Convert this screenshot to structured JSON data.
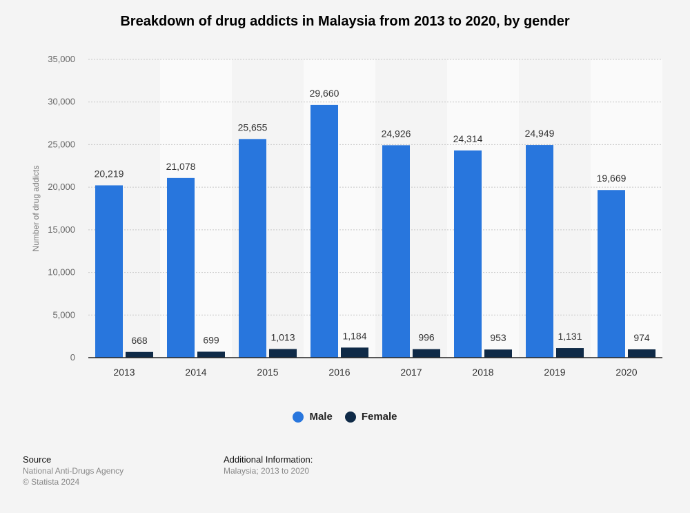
{
  "chart_data": {
    "type": "bar",
    "title": "Breakdown of drug addicts in Malaysia from 2013 to 2020, by gender",
    "xlabel": "",
    "ylabel": "Number of drug addicts",
    "ylim": [
      0,
      35000
    ],
    "yticks": [
      0,
      5000,
      10000,
      15000,
      20000,
      25000,
      30000,
      35000
    ],
    "ytick_labels": [
      "0",
      "5,000",
      "10,000",
      "15,000",
      "20,000",
      "25,000",
      "30,000",
      "35,000"
    ],
    "grid": true,
    "legend_position": "bottom-center",
    "categories": [
      "2013",
      "2014",
      "2015",
      "2016",
      "2017",
      "2018",
      "2019",
      "2020"
    ],
    "series": [
      {
        "name": "Male",
        "color": "#2876dd",
        "values": [
          20219,
          21078,
          25655,
          29660,
          24926,
          24314,
          24949,
          19669
        ],
        "labels": [
          "20,219",
          "21,078",
          "25,655",
          "29,660",
          "24,926",
          "24,314",
          "24,949",
          "19,669"
        ]
      },
      {
        "name": "Female",
        "color": "#0f2a47",
        "values": [
          668,
          699,
          1013,
          1184,
          996,
          953,
          1131,
          974
        ],
        "labels": [
          "668",
          "699",
          "1,013",
          "1,184",
          "996",
          "953",
          "1,131",
          "974"
        ]
      }
    ]
  },
  "footer": {
    "source_heading": "Source",
    "source_line": "National Anti-Drugs Agency",
    "copyright": "© Statista 2024",
    "info_heading": "Additional Information:",
    "info_line": "Malaysia; 2013 to 2020"
  }
}
